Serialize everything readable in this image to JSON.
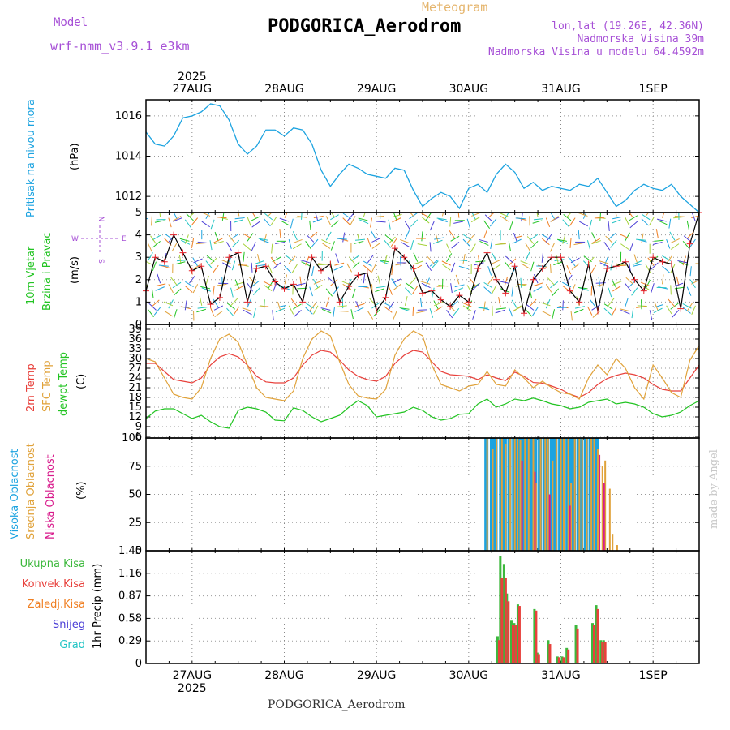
{
  "header": {
    "model_label": "Model",
    "model_value": "wrf-nmm_v3.9.1 e3km",
    "meteogram_label": "Meteogram",
    "station": "PODGORICA_Aerodrom",
    "lonlat": "lon,lat (19.26E, 42.36N)",
    "elevation": "Nadmorska Visina 39m",
    "elevation_model": "Nadmorska Visina u modelu 64.4592m"
  },
  "footer": {
    "station": "PODGORICA_Aerodrom",
    "watermark": "made by Angel"
  },
  "colors": {
    "pressure": "#1ca3e0",
    "wind_line": "#000000",
    "wind_marker": "#e8232a",
    "temp2m": "#e8413c",
    "sfc_temp": "#e0a23a",
    "dewpt": "#22c422",
    "cloud_high": "#1ca3e0",
    "cloud_mid": "#e0a23a",
    "cloud_low": "#d81b8c",
    "precip_total": "#3cb83c",
    "precip_conv": "#e8413c",
    "precip_frz": "#f07f22",
    "precip_snow": "#4b3fd6",
    "precip_hail": "#22c4c4"
  },
  "time_axis": {
    "year": "2025",
    "dates": [
      "27AUG",
      "28AUG",
      "29AUG",
      "30AUG",
      "31AUG",
      "1SEP"
    ],
    "start_day": 26.5,
    "end_day": 32.5
  },
  "chart_data": [
    {
      "type": "line",
      "title": "Pritisak na nivou mora",
      "ylabel": "(hPa)",
      "ylim": [
        1011.2,
        1016.8
      ],
      "yticks": [
        "1012",
        "1014",
        "1016"
      ],
      "ytick_values": [
        1012,
        1014,
        1016
      ],
      "x": [
        26.5,
        26.6,
        26.7,
        26.8,
        26.9,
        27.0,
        27.1,
        27.2,
        27.3,
        27.4,
        27.5,
        27.6,
        27.7,
        27.8,
        27.9,
        28.0,
        28.1,
        28.2,
        28.3,
        28.4,
        28.5,
        28.6,
        28.7,
        28.8,
        28.9,
        29.0,
        29.1,
        29.2,
        29.3,
        29.4,
        29.5,
        29.6,
        29.7,
        29.8,
        29.9,
        30.0,
        30.1,
        30.2,
        30.3,
        30.4,
        30.5,
        30.6,
        30.7,
        30.8,
        30.9,
        31.0,
        31.1,
        31.2,
        31.3,
        31.4,
        31.5,
        31.6,
        31.7,
        31.8,
        31.9,
        32.0,
        32.1,
        32.2,
        32.3,
        32.4,
        32.5
      ],
      "series": [
        {
          "name": "Pritisak",
          "values": [
            1015.2,
            1014.6,
            1014.5,
            1015.0,
            1015.9,
            1016.0,
            1016.2,
            1016.6,
            1016.5,
            1015.8,
            1014.6,
            1014.1,
            1014.5,
            1015.3,
            1015.3,
            1015.0,
            1015.4,
            1015.3,
            1014.6,
            1013.3,
            1012.5,
            1013.1,
            1013.6,
            1013.4,
            1013.1,
            1013.0,
            1012.9,
            1013.4,
            1013.3,
            1012.3,
            1011.5,
            1011.9,
            1012.2,
            1012.0,
            1011.4,
            1012.4,
            1012.6,
            1012.2,
            1013.1,
            1013.6,
            1013.2,
            1012.4,
            1012.7,
            1012.3,
            1012.5,
            1012.4,
            1012.3,
            1012.6,
            1012.5,
            1012.9,
            1012.2,
            1011.5,
            1011.8,
            1012.3,
            1012.6,
            1012.4,
            1012.3,
            1012.6,
            1012.0,
            1011.6,
            1011.2
          ]
        }
      ]
    },
    {
      "type": "line",
      "title": "10m Vjetar Brzina i Pravac",
      "ylabel": "(m/s)",
      "ylim": [
        0,
        5
      ],
      "yticks": [
        "0",
        "1",
        "2",
        "3",
        "4",
        "5"
      ],
      "ytick_values": [
        0,
        1,
        2,
        3,
        4,
        5
      ],
      "compass": {
        "n": "N",
        "s": "S",
        "w": "W",
        "e": "E"
      },
      "x": [
        26.5,
        26.6,
        26.7,
        26.8,
        26.9,
        27.0,
        27.1,
        27.2,
        27.3,
        27.4,
        27.5,
        27.6,
        27.7,
        27.8,
        27.9,
        28.0,
        28.1,
        28.2,
        28.3,
        28.4,
        28.5,
        28.6,
        28.7,
        28.8,
        28.9,
        29.0,
        29.1,
        29.2,
        29.3,
        29.4,
        29.5,
        29.6,
        29.7,
        29.8,
        29.9,
        30.0,
        30.1,
        30.2,
        30.3,
        30.4,
        30.5,
        30.6,
        30.7,
        30.8,
        30.9,
        31.0,
        31.1,
        31.2,
        31.3,
        31.4,
        31.5,
        31.6,
        31.7,
        31.8,
        31.9,
        32.0,
        32.1,
        32.2,
        32.3,
        32.4,
        32.5
      ],
      "series": [
        {
          "name": "Brzina",
          "values": [
            1.5,
            3.0,
            2.8,
            4.0,
            3.2,
            2.4,
            2.6,
            0.9,
            1.2,
            3.0,
            3.2,
            1.0,
            2.5,
            2.6,
            1.9,
            1.6,
            1.8,
            1.0,
            3.0,
            2.4,
            2.7,
            1.0,
            1.7,
            2.2,
            2.3,
            0.6,
            1.2,
            3.4,
            3.0,
            2.5,
            1.4,
            1.5,
            1.1,
            0.8,
            1.3,
            1.0,
            2.5,
            3.2,
            2.0,
            1.4,
            2.6,
            0.5,
            2.0,
            2.5,
            3.0,
            3.0,
            1.5,
            1.0,
            2.7,
            0.6,
            2.5,
            2.6,
            2.8,
            2.0,
            1.5,
            3.0,
            2.8,
            2.7,
            0.7,
            3.6,
            5.0
          ]
        }
      ]
    },
    {
      "type": "line",
      "title": "2m Temp / SFC Temp / dewpt Temp",
      "ylabel": "(C)",
      "ylim": [
        5.5,
        40.5
      ],
      "yticks": [
        "6",
        "9",
        "12",
        "15",
        "18",
        "21",
        "24",
        "27",
        "30",
        "33",
        "36",
        "39"
      ],
      "ytick_values": [
        6,
        9,
        12,
        15,
        18,
        21,
        24,
        27,
        30,
        33,
        36,
        39
      ],
      "x": [
        26.5,
        26.6,
        26.7,
        26.8,
        26.9,
        27.0,
        27.1,
        27.2,
        27.3,
        27.4,
        27.5,
        27.6,
        27.7,
        27.8,
        27.9,
        28.0,
        28.1,
        28.2,
        28.3,
        28.4,
        28.5,
        28.6,
        28.7,
        28.8,
        28.9,
        29.0,
        29.1,
        29.2,
        29.3,
        29.4,
        29.5,
        29.6,
        29.7,
        29.8,
        29.9,
        30.0,
        30.1,
        30.2,
        30.3,
        30.4,
        30.5,
        30.6,
        30.7,
        30.8,
        30.9,
        31.0,
        31.1,
        31.2,
        31.3,
        31.4,
        31.5,
        31.6,
        31.7,
        31.8,
        31.9,
        32.0,
        32.1,
        32.2,
        32.3,
        32.4,
        32.5
      ],
      "series": [
        {
          "name": "2m Temp",
          "values": [
            28.5,
            28.5,
            26.0,
            23.5,
            23.0,
            22.5,
            24.0,
            28.0,
            30.5,
            31.5,
            30.5,
            28.0,
            24.5,
            22.8,
            22.5,
            22.5,
            24.0,
            28.0,
            31.0,
            32.5,
            32.0,
            29.5,
            26.5,
            24.5,
            23.5,
            23.0,
            24.5,
            28.5,
            31.0,
            32.5,
            32.0,
            29.0,
            26.0,
            25.0,
            24.8,
            24.5,
            23.5,
            25.0,
            24.0,
            23.2,
            25.8,
            24.5,
            22.6,
            22.4,
            21.5,
            20.5,
            19.0,
            18.0,
            19.5,
            22.0,
            23.8,
            24.8,
            25.5,
            25.0,
            24.0,
            22.0,
            20.5,
            20.0,
            20.0,
            24.0,
            28.0
          ]
        },
        {
          "name": "SFC Temp",
          "values": [
            30.0,
            29.0,
            24.0,
            19.0,
            18.0,
            17.5,
            21.0,
            30.0,
            36.0,
            37.5,
            35.0,
            28.0,
            21.0,
            18.0,
            17.5,
            17.0,
            20.0,
            30.0,
            36.0,
            38.5,
            37.0,
            29.0,
            22.0,
            18.5,
            17.8,
            17.5,
            20.5,
            31.0,
            36.0,
            38.5,
            37.0,
            28.0,
            22.0,
            21.0,
            20.0,
            21.5,
            22.0,
            26.0,
            22.0,
            21.5,
            26.5,
            24.0,
            21.0,
            23.0,
            21.0,
            19.5,
            19.0,
            17.5,
            24.0,
            28.0,
            25.0,
            30.0,
            27.0,
            21.0,
            17.5,
            28.0,
            24.0,
            19.5,
            18.0,
            29.5,
            34.0
          ]
        },
        {
          "name": "dewpt Temp",
          "values": [
            11.5,
            13.8,
            14.5,
            14.5,
            13.0,
            11.5,
            12.5,
            10.5,
            9.0,
            8.5,
            14.0,
            15.0,
            14.5,
            13.5,
            11.0,
            10.8,
            14.8,
            14.0,
            12.0,
            10.5,
            11.5,
            12.5,
            15.0,
            17.0,
            15.5,
            12.0,
            12.5,
            13.0,
            13.5,
            15.0,
            14.0,
            12.0,
            11.0,
            11.5,
            12.8,
            13.0,
            16.0,
            17.5,
            15.0,
            16.0,
            17.5,
            17.0,
            17.8,
            17.0,
            16.0,
            15.5,
            14.5,
            15.0,
            16.5,
            17.0,
            17.5,
            16.0,
            16.5,
            16.0,
            15.0,
            13.0,
            12.0,
            12.5,
            13.5,
            15.5,
            17.0
          ]
        }
      ]
    },
    {
      "type": "bar",
      "title": "Visoka / Srednja / Niska Oblacnost",
      "ylabel": "(%)",
      "ylim": [
        0,
        100
      ],
      "yticks": [
        "0",
        "25",
        "50",
        "75",
        "100"
      ],
      "ytick_values": [
        0,
        25,
        50,
        75,
        100
      ],
      "x": [
        30.17,
        30.23,
        30.27,
        30.33,
        30.37,
        30.42,
        30.47,
        30.5,
        30.53,
        30.58,
        30.62,
        30.67,
        30.7,
        30.75,
        30.8,
        30.83,
        30.88,
        30.92,
        30.97,
        31.0,
        31.05,
        31.08,
        31.12,
        31.17,
        31.2,
        31.25,
        31.3,
        31.33,
        31.37,
        31.42,
        31.45,
        31.5,
        31.53,
        31.58
      ],
      "series": [
        {
          "name": "Visoka",
          "values": [
            100,
            100,
            100,
            100,
            100,
            100,
            100,
            100,
            100,
            100,
            100,
            100,
            100,
            100,
            100,
            100,
            100,
            100,
            100,
            100,
            100,
            100,
            100,
            100,
            100,
            100,
            100,
            100,
            100,
            0,
            0,
            0,
            0,
            0
          ]
        },
        {
          "name": "Srednja",
          "values": [
            100,
            90,
            100,
            100,
            95,
            100,
            100,
            100,
            98,
            100,
            100,
            100,
            60,
            100,
            100,
            100,
            80,
            100,
            100,
            100,
            100,
            60,
            100,
            100,
            100,
            100,
            100,
            100,
            90,
            75,
            80,
            55,
            15,
            5
          ]
        },
        {
          "name": "Niska",
          "values": [
            0,
            0,
            0,
            0,
            0,
            0,
            0,
            0,
            80,
            0,
            0,
            70,
            0,
            0,
            0,
            50,
            0,
            0,
            0,
            0,
            40,
            0,
            0,
            0,
            0,
            0,
            0,
            0,
            85,
            60,
            0,
            0,
            0,
            0
          ]
        }
      ]
    },
    {
      "type": "bar",
      "title": "1hr Precip",
      "ylabel": "1hr Precip (mm)",
      "ylim": [
        0,
        1.45
      ],
      "yticks": [
        "0",
        "0.29",
        "0.58",
        "0.87",
        "1.16",
        "1.45"
      ],
      "ytick_values": [
        0,
        0.29,
        0.58,
        0.87,
        1.16,
        1.45
      ],
      "legend": [
        "Ukupna Kisa",
        "Konvek.Kisa",
        "Zaledj.Kisa",
        "Snijeg",
        "Grad"
      ],
      "x": [
        30.3,
        30.33,
        30.37,
        30.4,
        30.45,
        30.48,
        30.52,
        30.55,
        30.7,
        30.73,
        30.8,
        30.85,
        30.9,
        30.95,
        31.0,
        31.05,
        31.1,
        31.15,
        31.22,
        31.28,
        31.33,
        31.37,
        31.42,
        31.45
      ],
      "series": [
        {
          "name": "Ukupna Kisa",
          "values": [
            0.35,
            1.38,
            1.28,
            0.9,
            0.55,
            0.52,
            0.76,
            0.0,
            0.7,
            0.14,
            0.0,
            0.3,
            0.0,
            0.09,
            0.09,
            0.2,
            0.0,
            0.5,
            0.0,
            0.0,
            0.52,
            0.75,
            0.3,
            0.3
          ]
        },
        {
          "name": "Konvek.Kisa",
          "values": [
            0.3,
            1.1,
            1.1,
            0.8,
            0.5,
            0.5,
            0.74,
            0.0,
            0.68,
            0.12,
            0.0,
            0.25,
            0.0,
            0.08,
            0.08,
            0.18,
            0.0,
            0.45,
            0.0,
            0.0,
            0.5,
            0.7,
            0.28,
            0.28
          ]
        }
      ]
    }
  ],
  "panel_labels": {
    "pressure": [
      "Pritisak na nivou mora"
    ],
    "wind": [
      "10m Vjetar",
      "Brzina i Pravac"
    ],
    "temp": [
      "2m Temp",
      "SFC Temp",
      "dewpt Temp"
    ],
    "cloud": [
      "Visoka Oblacnost",
      "Srednja Oblacnost",
      "Niska Oblacnost"
    ]
  }
}
